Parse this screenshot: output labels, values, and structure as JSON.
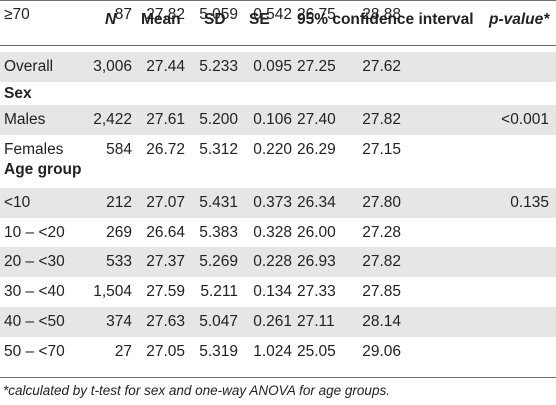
{
  "columns": {
    "n": "N",
    "mean": "Mean",
    "sd": "SD",
    "se": "SE",
    "ci": "95% confidence interval",
    "p": "p-value*"
  },
  "rows": [
    {
      "type": "data",
      "label": "Overall",
      "n": "3,006",
      "mean": "27.44",
      "sd": "5.233",
      "se": "0.095",
      "ci_low": "27.25",
      "ci_high": "27.62",
      "p": ""
    },
    {
      "type": "section",
      "label": "Sex"
    },
    {
      "type": "data",
      "label": "Males",
      "n": "2,422",
      "mean": "27.61",
      "sd": "5.200",
      "se": "0.106",
      "ci_low": "27.40",
      "ci_high": "27.82",
      "p": "<0.001"
    },
    {
      "type": "data",
      "label": "Females",
      "n": "584",
      "mean": "26.72",
      "sd": "5.312",
      "se": "0.220",
      "ci_low": "26.29",
      "ci_high": "27.15",
      "p": ""
    },
    {
      "type": "section",
      "label": "Age group"
    },
    {
      "type": "data",
      "label": "<10",
      "n": "212",
      "mean": "27.07",
      "sd": "5.431",
      "se": "0.373",
      "ci_low": "26.34",
      "ci_high": "27.80",
      "p": "0.135"
    },
    {
      "type": "data",
      "label": "10 – <20",
      "n": "269",
      "mean": "26.64",
      "sd": "5.383",
      "se": "0.328",
      "ci_low": "26.00",
      "ci_high": "27.28",
      "p": ""
    },
    {
      "type": "data",
      "label": "20 – <30",
      "n": "533",
      "mean": "27.37",
      "sd": "5.269",
      "se": "0.228",
      "ci_low": "26.93",
      "ci_high": "27.82",
      "p": ""
    },
    {
      "type": "data",
      "label": "30 – <40",
      "n": "1,504",
      "mean": "27.59",
      "sd": "5.211",
      "se": "0.134",
      "ci_low": "27.33",
      "ci_high": "27.85",
      "p": ""
    },
    {
      "type": "data",
      "label": "40 – <50",
      "n": "374",
      "mean": "27.63",
      "sd": "5.047",
      "se": "0.261",
      "ci_low": "27.11",
      "ci_high": "28.14",
      "p": ""
    },
    {
      "type": "data",
      "label": "50 – <70",
      "n": "27",
      "mean": "27.05",
      "sd": "5.319",
      "se": "1.024",
      "ci_low": "25.05",
      "ci_high": "29.06",
      "p": ""
    },
    {
      "type": "data",
      "label": "≥70",
      "n": "87",
      "mean": "27.82",
      "sd": "5.059",
      "se": "0.542",
      "ci_low": "26.75",
      "ci_high": "28.88",
      "p": ""
    }
  ],
  "footnote": "*calculated by t-test for sex and one-way ANOVA for age groups."
}
